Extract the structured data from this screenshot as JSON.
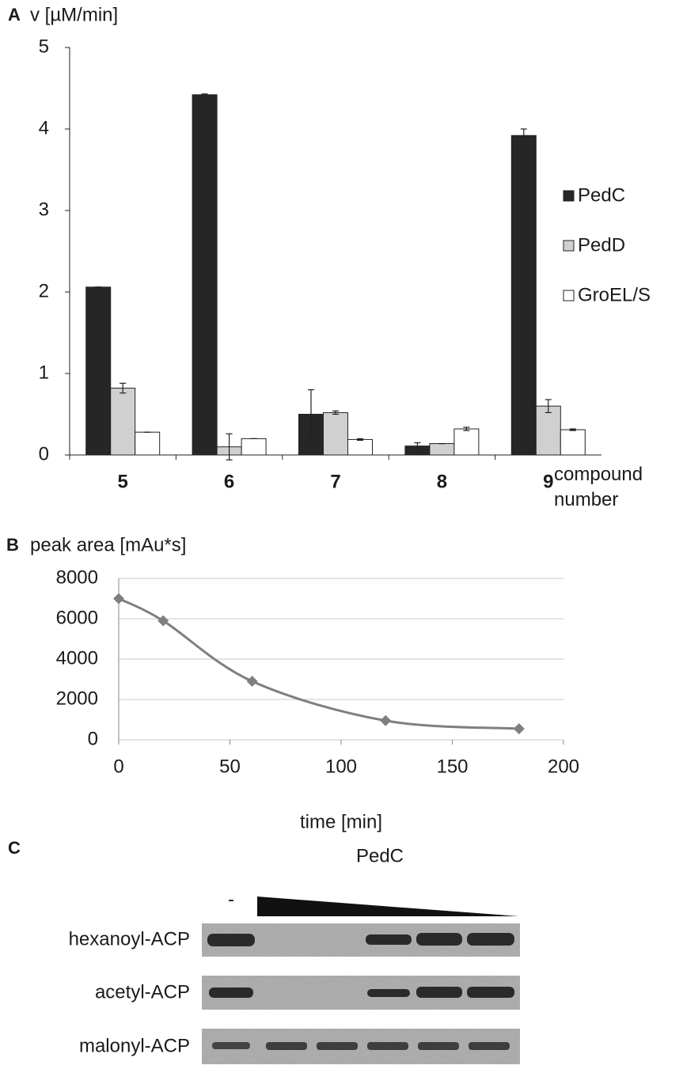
{
  "chart_data": [
    {
      "panel": "A",
      "type": "bar",
      "y_label": "v [µM/min]",
      "x_label": "compound number",
      "categories": [
        "5",
        "6",
        "7",
        "8",
        "9"
      ],
      "series": [
        {
          "name": "PedC",
          "color": "#262626",
          "values": [
            2.06,
            4.42,
            0.5,
            0.11,
            3.92
          ],
          "errors": [
            0,
            0.01,
            0.3,
            0.04,
            0.08
          ]
        },
        {
          "name": "PedD",
          "color": "#d0d0d0",
          "values": [
            0.82,
            0.1,
            0.52,
            0.14,
            0.6
          ],
          "errors": [
            0.06,
            0.16,
            0.02,
            0,
            0.08
          ]
        },
        {
          "name": "GroEL/S",
          "color": "#ffffff",
          "values": [
            0.28,
            0.2,
            0.19,
            0.32,
            0.31
          ],
          "errors": [
            0,
            0,
            0.01,
            0.02,
            0.01
          ]
        }
      ],
      "ylim": [
        0,
        5
      ],
      "yticks": [
        0,
        1,
        2,
        3,
        4,
        5
      ],
      "grid": false
    },
    {
      "panel": "B",
      "type": "line",
      "y_label": "peak area [mAu*s]",
      "x_label": "time [min]",
      "x": [
        0,
        20,
        60,
        120,
        180
      ],
      "values": [
        7000,
        5900,
        2900,
        950,
        550
      ],
      "color": "#7f7f7f",
      "xlim": [
        0,
        200
      ],
      "xticks": [
        0,
        50,
        100,
        150,
        200
      ],
      "ylim": [
        0,
        8000
      ],
      "yticks": [
        0,
        2000,
        4000,
        6000,
        8000
      ],
      "grid": true
    }
  ],
  "gel": {
    "panel": "C",
    "title": "PedC",
    "control": "-",
    "rows": [
      "hexanoyl-ACP",
      "acetyl-ACP",
      "malonyl-ACP"
    ]
  }
}
